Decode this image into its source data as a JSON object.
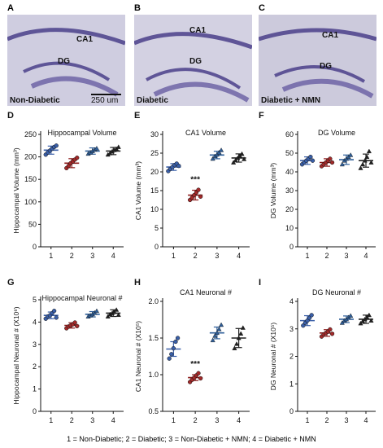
{
  "images": [
    {
      "letter": "A",
      "labels": [
        "CA1",
        "DG"
      ],
      "corner": "Non-Diabetic",
      "scale": "250 um"
    },
    {
      "letter": "B",
      "labels": [
        "CA1",
        "DG"
      ],
      "corner": "Diabetic",
      "scale": ""
    },
    {
      "letter": "C",
      "labels": [
        "CA1",
        "DG"
      ],
      "corner": "Diabetic + NMN",
      "scale": ""
    }
  ],
  "colors": {
    "group1": "#3a5fa8",
    "group2": "#8b1a1a",
    "group3": "#2f5f9a",
    "group4": "#222222",
    "tissue": "#c8c6dc",
    "layer": "#4a3f8a"
  },
  "caption": "1 = Non-Diabetic; 2 = Diabetic; 3 = Non-Diabetic + NMN; 4 = Diabetic + NMN",
  "chart_data": [
    {
      "letter": "D",
      "type": "scatter",
      "title": "Hippocampal Volume",
      "ylabel": "Hippocampal Volume (mm³)",
      "categories": [
        "1",
        "2",
        "3",
        "4"
      ],
      "ylim": [
        0,
        250
      ],
      "yticks": [
        "0",
        "50",
        "100",
        "150",
        "200",
        "250"
      ],
      "means": [
        215,
        186,
        213,
        213
      ],
      "sd": [
        9,
        10,
        7,
        8
      ],
      "points": [
        [
          205,
          210,
          214,
          218,
          222,
          225
        ],
        [
          175,
          180,
          186,
          190,
          194,
          198
        ],
        [
          207,
          210,
          213,
          216,
          219
        ],
        [
          205,
          208,
          212,
          215,
          218,
          222
        ]
      ],
      "annotation": ""
    },
    {
      "letter": "E",
      "type": "scatter",
      "title": "CA1 Volume",
      "ylabel": "CA1 Volume (mm³)",
      "categories": [
        "1",
        "2",
        "3",
        "4"
      ],
      "ylim": [
        0,
        30
      ],
      "yticks": [
        "0",
        "5",
        "10",
        "15",
        "20",
        "25",
        "30"
      ],
      "means": [
        21.3,
        13.8,
        24.5,
        23.7
      ],
      "sd": [
        0.9,
        1.3,
        1.0,
        1.1
      ],
      "points": [
        [
          20.2,
          20.8,
          21.3,
          21.8,
          22.2,
          21.6
        ],
        [
          12.5,
          13.1,
          13.8,
          14.5,
          15.2,
          13.4
        ],
        [
          23.5,
          24.2,
          24.6,
          25.2,
          25.8
        ],
        [
          22.5,
          23.1,
          23.7,
          24.3,
          24.8,
          23.4
        ]
      ],
      "annotation": "***",
      "annotation_index": 1
    },
    {
      "letter": "F",
      "type": "scatter",
      "title": "DG Volume",
      "ylabel": "DG Volume (mm³)",
      "categories": [
        "1",
        "2",
        "3",
        "4"
      ],
      "ylim": [
        0,
        60
      ],
      "yticks": [
        "0",
        "10",
        "20",
        "30",
        "40",
        "50",
        "60"
      ],
      "means": [
        46,
        45,
        46.5,
        46
      ],
      "sd": [
        2,
        2,
        2.5,
        3.5
      ],
      "points": [
        [
          44,
          45,
          46,
          47,
          48,
          46
        ],
        [
          43,
          44,
          45,
          46,
          47,
          45
        ],
        [
          44,
          46,
          47,
          48,
          49
        ],
        [
          42,
          44,
          46,
          48,
          51,
          45
        ]
      ],
      "annotation": ""
    },
    {
      "letter": "G",
      "type": "scatter",
      "title": "Hippocampal Neuronal #",
      "ylabel": "Hippocampal Neuronal # (X10⁶)",
      "categories": [
        "1",
        "2",
        "3",
        "4"
      ],
      "ylim": [
        0,
        5
      ],
      "yticks": [
        "0",
        "1",
        "2",
        "3",
        "4",
        "5"
      ],
      "means": [
        4.3,
        3.85,
        4.35,
        4.4
      ],
      "sd": [
        0.15,
        0.12,
        0.12,
        0.15
      ],
      "points": [
        [
          4.15,
          4.25,
          4.3,
          4.4,
          4.5,
          4.2
        ],
        [
          3.72,
          3.8,
          3.85,
          3.9,
          3.98,
          3.82
        ],
        [
          4.25,
          4.3,
          4.35,
          4.42,
          4.5
        ],
        [
          4.25,
          4.35,
          4.4,
          4.45,
          4.55,
          4.32
        ]
      ],
      "annotation": ""
    },
    {
      "letter": "H",
      "type": "scatter",
      "title": "CA1 Neuronal #",
      "ylabel": "CA1 Neuronal # (X10⁵)",
      "categories": [
        "1",
        "2",
        "3",
        "4"
      ],
      "ylim": [
        0.5,
        2.0
      ],
      "yticks": [
        "0.5",
        "1.0",
        "1.5",
        "2.0"
      ],
      "means": [
        1.35,
        0.96,
        1.57,
        1.5
      ],
      "sd": [
        0.1,
        0.04,
        0.08,
        0.13
      ],
      "points": [
        [
          1.22,
          1.28,
          1.36,
          1.45,
          1.5
        ],
        [
          0.9,
          0.93,
          0.96,
          0.99,
          1.02,
          0.95
        ],
        [
          1.47,
          1.53,
          1.57,
          1.62,
          1.68
        ],
        [
          1.36,
          1.42,
          1.5,
          1.56,
          1.64
        ]
      ],
      "annotation": "***",
      "annotation_index": 1
    },
    {
      "letter": "I",
      "type": "scatter",
      "title": "DG Neuronal #",
      "ylabel": "DG Neuronal # (X10⁵)",
      "categories": [
        "1",
        "2",
        "3",
        "4"
      ],
      "ylim": [
        0,
        4
      ],
      "yticks": [
        "0",
        "1",
        "2",
        "3",
        "4"
      ],
      "means": [
        3.3,
        2.85,
        3.35,
        3.35
      ],
      "sd": [
        0.18,
        0.12,
        0.12,
        0.15
      ],
      "points": [
        [
          3.12,
          3.22,
          3.3,
          3.4,
          3.5
        ],
        [
          2.72,
          2.8,
          2.85,
          2.9,
          2.98,
          2.82
        ],
        [
          3.22,
          3.3,
          3.35,
          3.42,
          3.48
        ],
        [
          3.2,
          3.28,
          3.35,
          3.42,
          3.5,
          3.3
        ]
      ],
      "annotation": ""
    }
  ]
}
